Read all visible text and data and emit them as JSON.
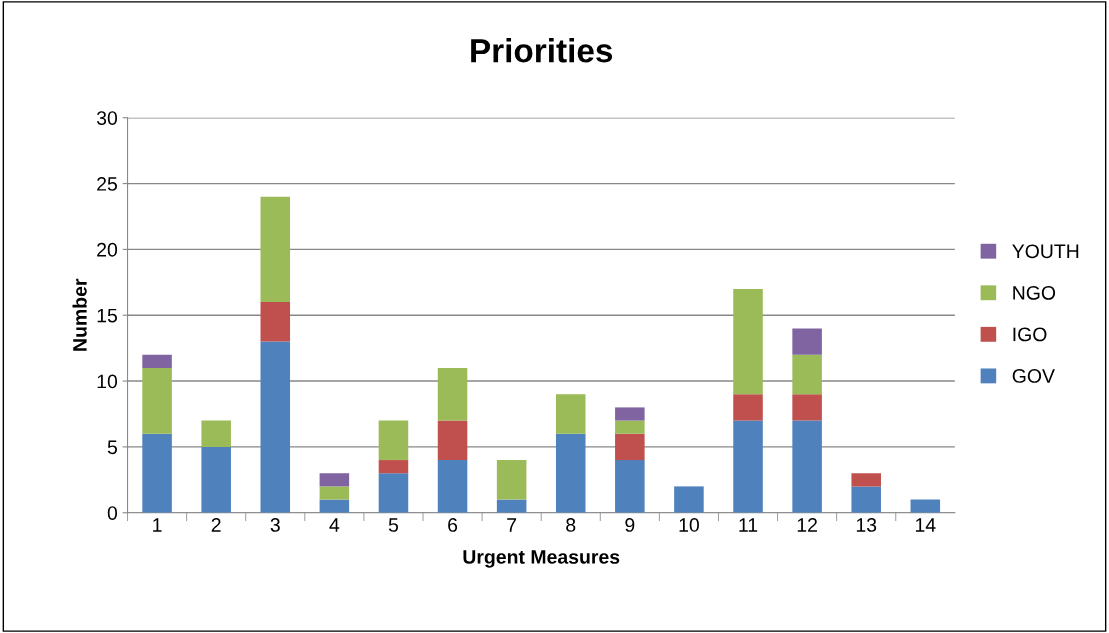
{
  "chart_data": {
    "type": "bar",
    "title": "Priorities",
    "xlabel": "Urgent Measures",
    "ylabel": "Number",
    "categories": [
      "1",
      "2",
      "3",
      "4",
      "5",
      "6",
      "7",
      "8",
      "9",
      "10",
      "11",
      "12",
      "13",
      "14"
    ],
    "stacked": true,
    "series": [
      {
        "name": "GOV",
        "color": "#4f81bd",
        "values": [
          6,
          5,
          13,
          1,
          3,
          4,
          1,
          6,
          4,
          2,
          7,
          7,
          2,
          1
        ]
      },
      {
        "name": "IGO",
        "color": "#c0504d",
        "values": [
          0,
          0,
          3,
          0,
          1,
          3,
          0,
          0,
          2,
          0,
          2,
          2,
          1,
          0
        ]
      },
      {
        "name": "NGO",
        "color": "#9bbb59",
        "values": [
          5,
          2,
          8,
          1,
          3,
          4,
          3,
          3,
          1,
          0,
          8,
          3,
          0,
          0
        ]
      },
      {
        "name": "YOUTH",
        "color": "#8064a2",
        "values": [
          1,
          0,
          0,
          1,
          0,
          0,
          0,
          0,
          1,
          0,
          0,
          2,
          0,
          0
        ]
      }
    ],
    "ylim": [
      0,
      30
    ],
    "yticks": [
      0,
      5,
      10,
      15,
      20,
      25,
      30
    ],
    "grid": "y",
    "legend": "right"
  }
}
